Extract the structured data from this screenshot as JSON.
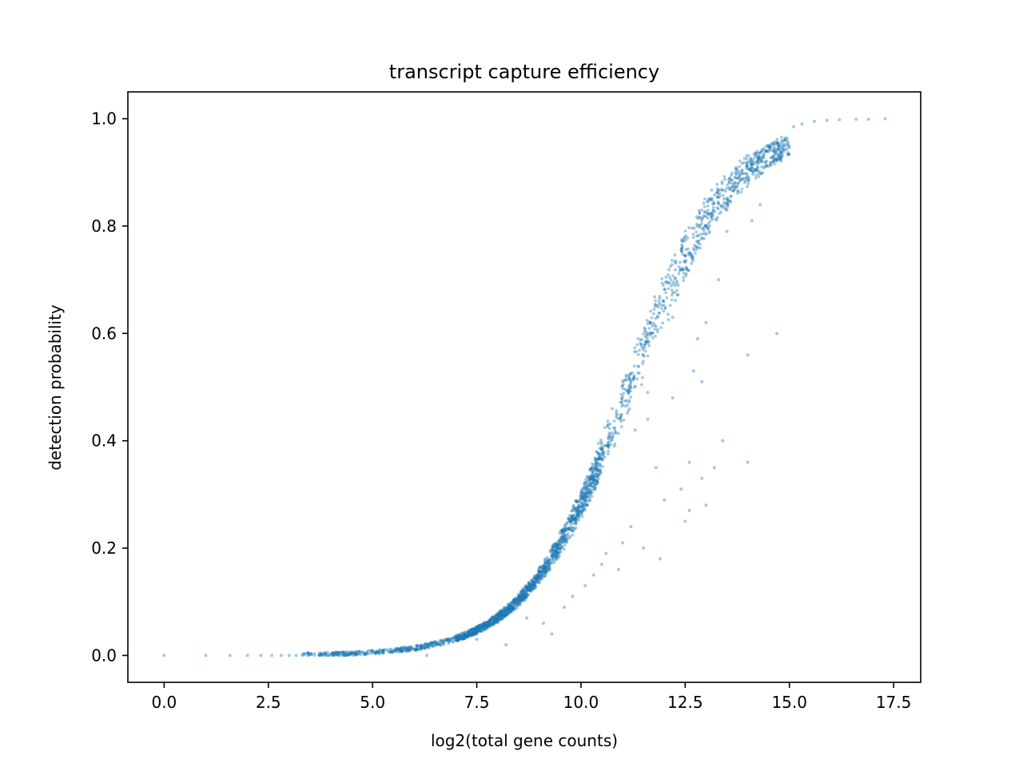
{
  "chart_data": {
    "type": "scatter",
    "title": "transcript capture efficiency",
    "xlabel": "log2(total gene counts)",
    "ylabel": "detection probability",
    "xlim": [
      -0.87,
      18.15
    ],
    "ylim": [
      -0.05,
      1.05
    ],
    "xticks": [
      0.0,
      2.5,
      5.0,
      7.5,
      10.0,
      12.5,
      15.0,
      17.5
    ],
    "xtick_labels": [
      "0.0",
      "2.5",
      "5.0",
      "7.5",
      "10.0",
      "12.5",
      "15.0",
      "17.5"
    ],
    "yticks": [
      0.0,
      0.2,
      0.4,
      0.6,
      0.8,
      1.0
    ],
    "ytick_labels": [
      "0.0",
      "0.2",
      "0.4",
      "0.6",
      "0.8",
      "1.0"
    ],
    "grid": false,
    "marker_color": "#1f77b4",
    "marker_alpha": 0.4,
    "series": [
      {
        "trend_curve": {
          "model": "logistic",
          "midpoint_x": 11.0,
          "slope": 0.85,
          "x_range": [
            0.0,
            17.3
          ]
        },
        "points": [
          [
            0.0,
            0.0
          ],
          [
            1.0,
            0.0
          ],
          [
            1.58,
            0.0
          ],
          [
            2.0,
            0.0
          ],
          [
            2.32,
            0.0
          ],
          [
            2.58,
            0.0
          ],
          [
            2.81,
            0.0
          ],
          [
            3.0,
            0.0
          ],
          [
            3.17,
            0.0
          ],
          [
            3.32,
            0.0
          ],
          [
            6.3,
            0.0
          ],
          [
            7.5,
            0.03
          ],
          [
            8.2,
            0.02
          ],
          [
            8.7,
            0.07
          ],
          [
            9.1,
            0.06
          ],
          [
            9.3,
            0.04
          ],
          [
            9.6,
            0.09
          ],
          [
            9.8,
            0.11
          ],
          [
            10.1,
            0.13
          ],
          [
            10.3,
            0.15
          ],
          [
            10.5,
            0.17
          ],
          [
            10.6,
            0.19
          ],
          [
            10.9,
            0.16
          ],
          [
            11.0,
            0.21
          ],
          [
            11.2,
            0.24
          ],
          [
            11.5,
            0.2
          ],
          [
            11.9,
            0.18
          ],
          [
            12.0,
            0.29
          ],
          [
            12.4,
            0.31
          ],
          [
            12.6,
            0.27
          ],
          [
            12.9,
            0.33
          ],
          [
            13.2,
            0.35
          ],
          [
            13.4,
            0.4
          ],
          [
            14.0,
            0.36
          ],
          [
            14.0,
            0.56
          ],
          [
            14.7,
            0.6
          ],
          [
            13.3,
            0.7
          ],
          [
            12.8,
            0.59
          ],
          [
            12.2,
            0.48
          ],
          [
            11.6,
            0.44
          ],
          [
            11.8,
            0.35
          ],
          [
            11.3,
            0.42
          ],
          [
            10.8,
            0.39
          ],
          [
            12.6,
            0.36
          ],
          [
            12.5,
            0.25
          ],
          [
            13.0,
            0.28
          ],
          [
            14.3,
            0.84
          ],
          [
            14.1,
            0.81
          ],
          [
            13.5,
            0.79
          ],
          [
            14.2,
            0.92
          ],
          [
            14.5,
            0.95
          ],
          [
            15.1,
            0.985
          ],
          [
            15.3,
            0.99
          ],
          [
            15.6,
            0.995
          ],
          [
            15.9,
            0.997
          ],
          [
            16.2,
            0.998
          ],
          [
            16.6,
            0.999
          ],
          [
            16.9,
            0.999
          ],
          [
            17.3,
            1.0
          ],
          [
            12.7,
            0.53
          ],
          [
            12.2,
            0.63
          ],
          [
            12.3,
            0.68
          ],
          [
            11.6,
            0.49
          ],
          [
            13.0,
            0.62
          ],
          [
            12.9,
            0.51
          ],
          [
            13.7,
            0.88
          ],
          [
            13.5,
            0.83
          ]
        ]
      }
    ]
  }
}
